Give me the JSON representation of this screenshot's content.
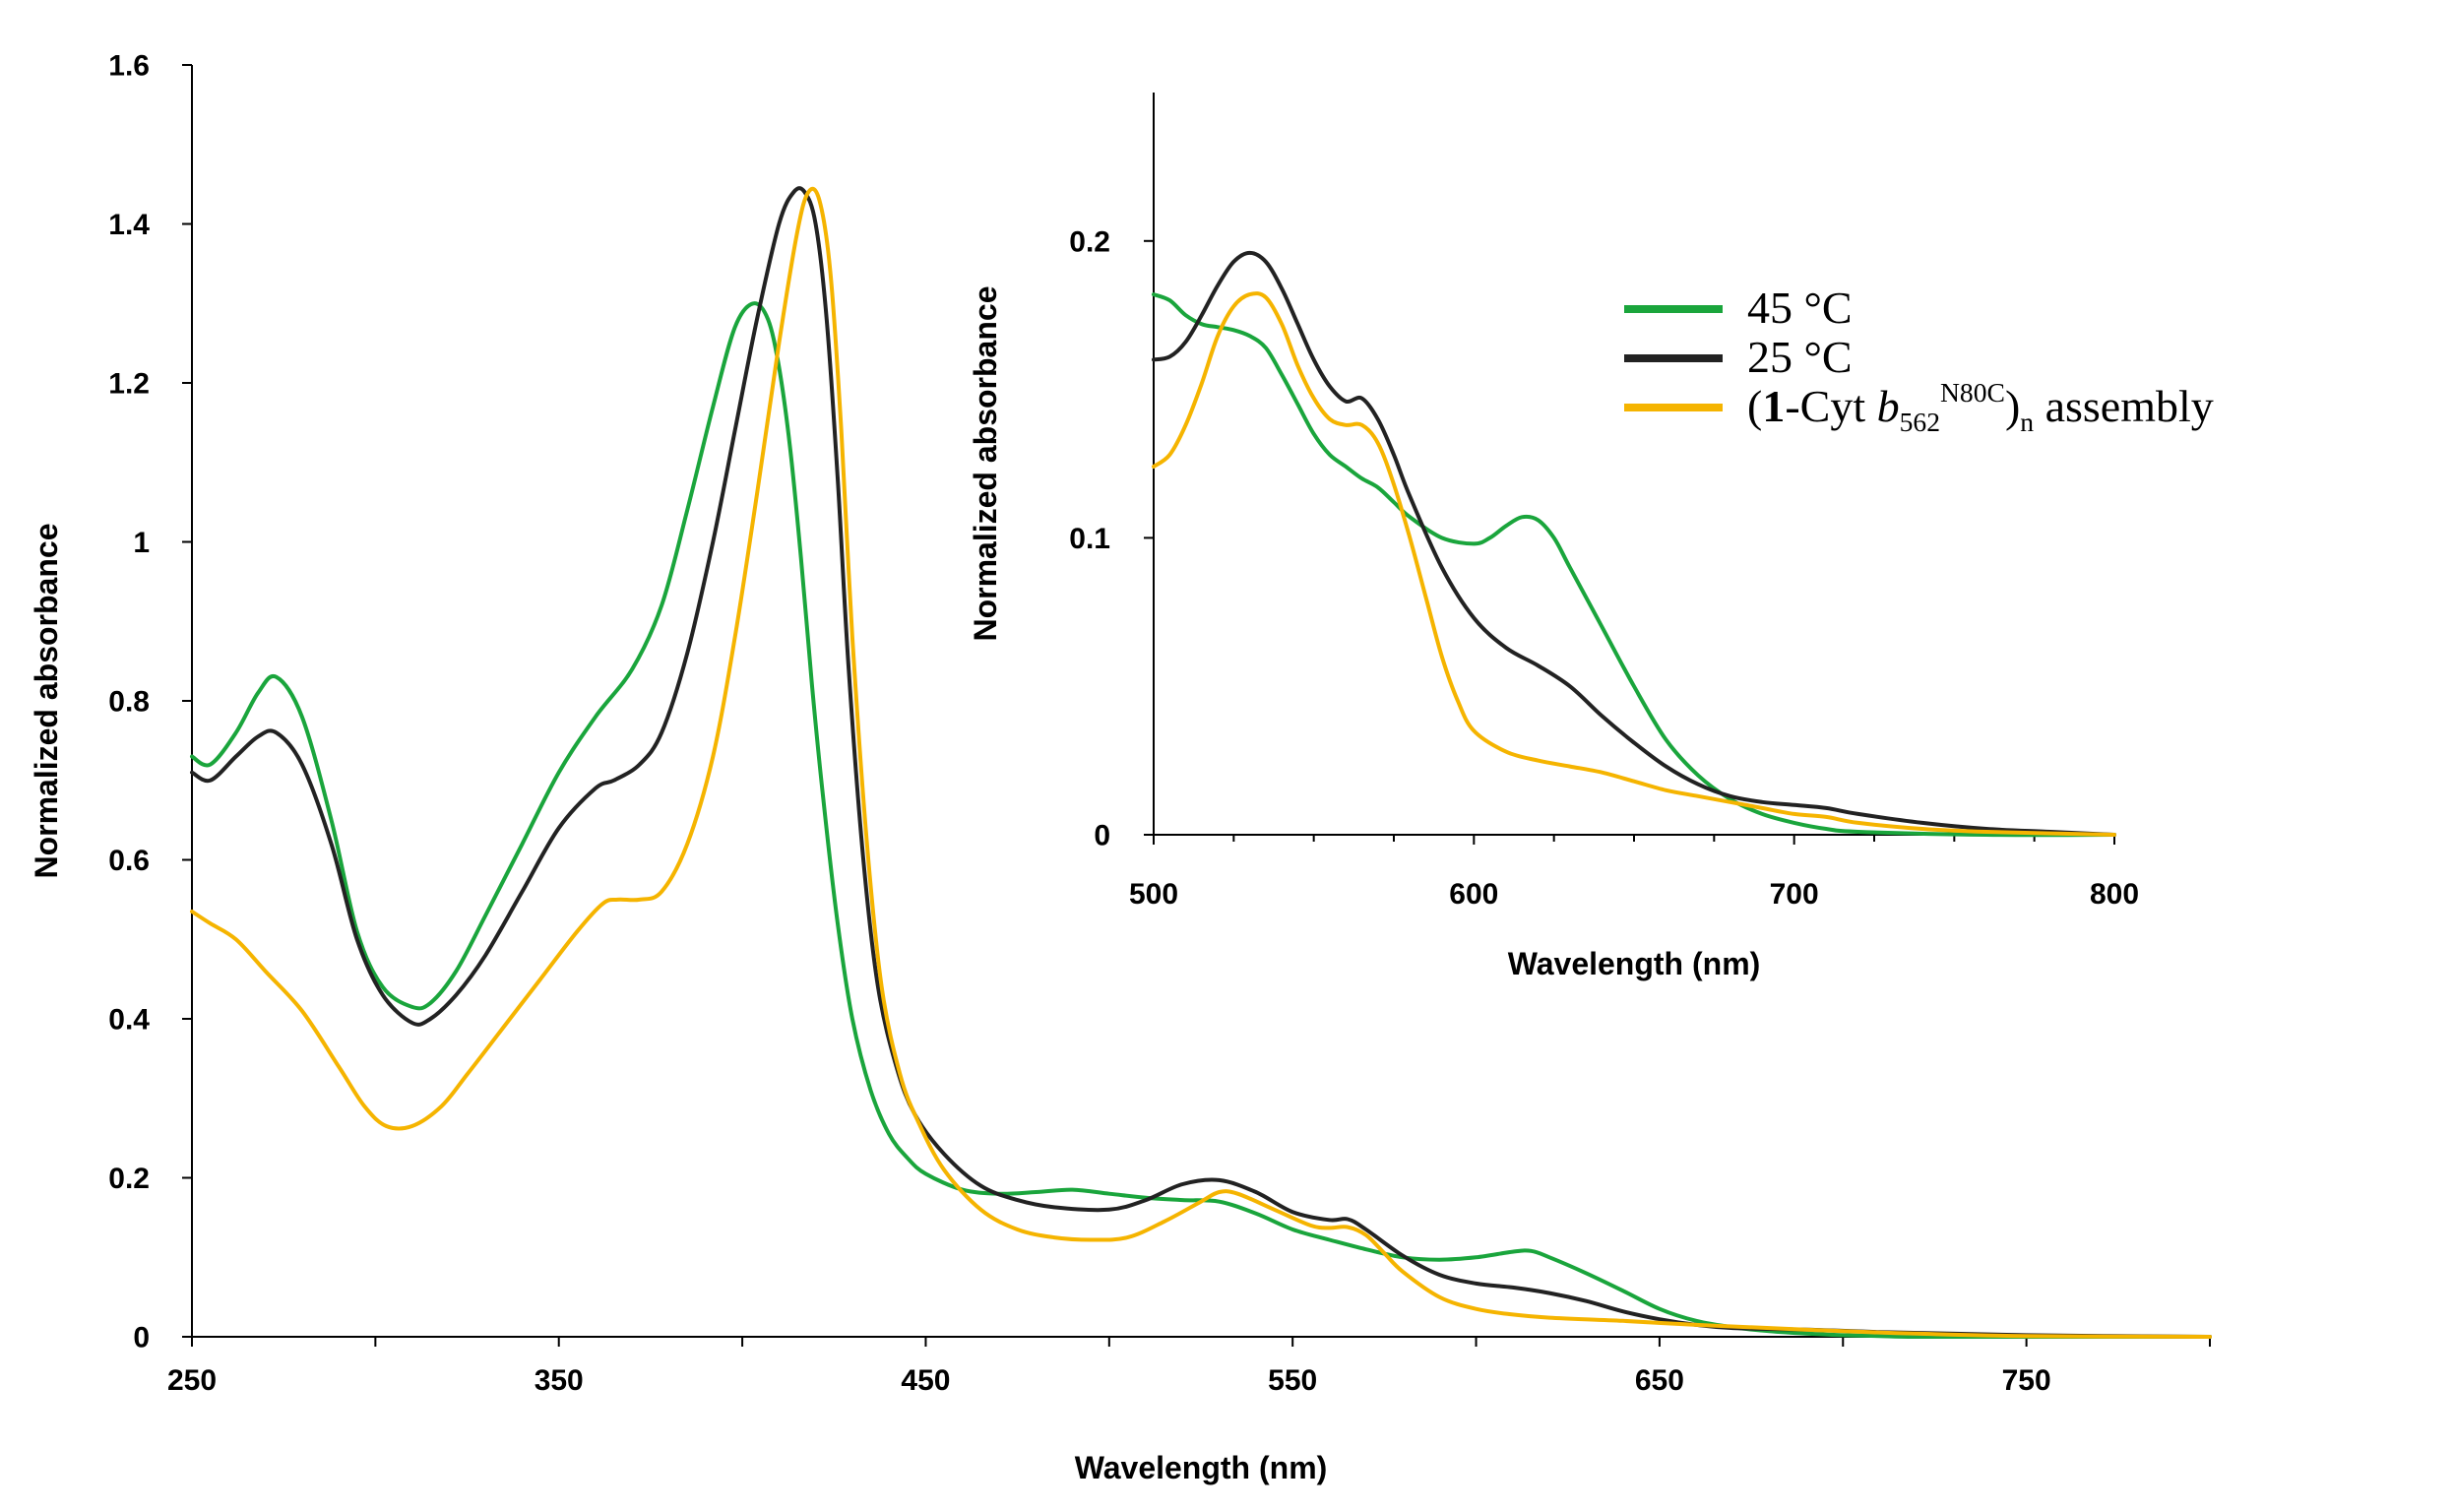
{
  "chart_data": [
    {
      "id": "main",
      "type": "line",
      "title": "",
      "xlabel": "Wavelength (nm)",
      "ylabel": "Normalized absorbance",
      "xlim": [
        250,
        800
      ],
      "ylim": [
        0,
        1.6
      ],
      "xticks": [
        250,
        350,
        450,
        550,
        650,
        750
      ],
      "yticks": [
        0,
        0.2,
        0.4,
        0.6,
        0.8,
        1,
        1.2,
        1.4,
        1.6
      ],
      "ytick_labels": [
        "0",
        "0.2",
        "0.4",
        "0.6",
        "0.8",
        "1",
        "1.2",
        "1.4",
        "1.6"
      ],
      "grid": false,
      "series": [
        {
          "name": "45 °C",
          "color": "#1aa53c",
          "x": [
            250,
            255,
            262,
            268,
            273,
            280,
            288,
            295,
            302,
            310,
            315,
            322,
            330,
            340,
            350,
            360,
            370,
            378,
            385,
            392,
            398,
            403,
            407,
            410,
            413,
            416,
            419,
            422,
            426,
            430,
            435,
            440,
            445,
            450,
            460,
            470,
            480,
            490,
            500,
            510,
            520,
            530,
            540,
            550,
            560,
            570,
            580,
            590,
            600,
            610,
            615,
            620,
            630,
            640,
            650,
            660,
            670,
            680,
            690,
            700,
            710,
            720,
            750,
            800
          ],
          "y": [
            0.73,
            0.72,
            0.76,
            0.81,
            0.83,
            0.78,
            0.65,
            0.51,
            0.44,
            0.415,
            0.42,
            0.46,
            0.53,
            0.62,
            0.71,
            0.78,
            0.84,
            0.92,
            1.04,
            1.17,
            1.27,
            1.3,
            1.28,
            1.22,
            1.12,
            0.98,
            0.82,
            0.68,
            0.52,
            0.4,
            0.31,
            0.255,
            0.225,
            0.205,
            0.185,
            0.18,
            0.182,
            0.185,
            0.18,
            0.175,
            0.172,
            0.17,
            0.155,
            0.135,
            0.122,
            0.11,
            0.1,
            0.097,
            0.1,
            0.107,
            0.108,
            0.1,
            0.08,
            0.058,
            0.035,
            0.02,
            0.012,
            0.007,
            0.004,
            0.002,
            0.001,
            0,
            0,
            0
          ]
        },
        {
          "name": "25 °C",
          "color": "#222222",
          "x": [
            250,
            255,
            262,
            268,
            273,
            280,
            288,
            295,
            302,
            310,
            315,
            322,
            330,
            340,
            350,
            360,
            365,
            372,
            378,
            385,
            392,
            398,
            404,
            410,
            414,
            417,
            420,
            423,
            426,
            429,
            433,
            437,
            442,
            447,
            455,
            465,
            475,
            485,
            500,
            510,
            520,
            530,
            540,
            550,
            560,
            565,
            570,
            580,
            590,
            600,
            610,
            620,
            630,
            640,
            650,
            660,
            670,
            690,
            710,
            750,
            800
          ],
          "y": [
            0.71,
            0.7,
            0.73,
            0.755,
            0.76,
            0.72,
            0.62,
            0.5,
            0.43,
            0.395,
            0.4,
            0.43,
            0.48,
            0.56,
            0.64,
            0.69,
            0.7,
            0.72,
            0.76,
            0.86,
            1.0,
            1.14,
            1.28,
            1.4,
            1.44,
            1.44,
            1.4,
            1.28,
            1.08,
            0.84,
            0.6,
            0.44,
            0.34,
            0.28,
            0.23,
            0.19,
            0.172,
            0.163,
            0.16,
            0.172,
            0.192,
            0.197,
            0.182,
            0.157,
            0.147,
            0.148,
            0.135,
            0.102,
            0.078,
            0.067,
            0.062,
            0.055,
            0.045,
            0.032,
            0.022,
            0.015,
            0.011,
            0.009,
            0.006,
            0.002,
            0
          ]
        },
        {
          "name": "(1-Cyt b562N80C)n assembly",
          "color": "#f5b400",
          "x": [
            250,
            255,
            262,
            270,
            280,
            290,
            297,
            303,
            310,
            318,
            325,
            335,
            345,
            355,
            362,
            366,
            372,
            378,
            385,
            392,
            398,
            404,
            410,
            415,
            418,
            421,
            424,
            427,
            430,
            434,
            438,
            443,
            448,
            455,
            465,
            475,
            485,
            495,
            505,
            515,
            525,
            530,
            535,
            545,
            555,
            560,
            565,
            570,
            575,
            580,
            590,
            600,
            610,
            620,
            640,
            660,
            680,
            700,
            720,
            750,
            800
          ],
          "y": [
            0.535,
            0.52,
            0.5,
            0.46,
            0.41,
            0.34,
            0.29,
            0.265,
            0.265,
            0.29,
            0.33,
            0.39,
            0.45,
            0.51,
            0.545,
            0.55,
            0.55,
            0.56,
            0.62,
            0.73,
            0.88,
            1.06,
            1.25,
            1.39,
            1.44,
            1.43,
            1.34,
            1.14,
            0.88,
            0.62,
            0.44,
            0.33,
            0.27,
            0.21,
            0.16,
            0.135,
            0.125,
            0.122,
            0.125,
            0.145,
            0.17,
            0.182,
            0.18,
            0.16,
            0.14,
            0.137,
            0.138,
            0.128,
            0.105,
            0.082,
            0.05,
            0.035,
            0.028,
            0.024,
            0.02,
            0.015,
            0.011,
            0.007,
            0.004,
            0.001,
            0
          ]
        }
      ]
    },
    {
      "id": "inset",
      "type": "line",
      "title": "",
      "xlabel": "Wavelength (nm)",
      "ylabel": "Normalized absorbance",
      "xlim": [
        500,
        800
      ],
      "ylim": [
        0,
        0.25
      ],
      "xticks": [
        500,
        600,
        700,
        800
      ],
      "yticks": [
        0,
        0.1,
        0.2
      ],
      "ytick_labels": [
        "0",
        "0.1",
        "0.2"
      ],
      "grid": false,
      "series": [
        {
          "name": "45 °C",
          "color": "#1aa53c",
          "x": [
            500,
            505,
            510,
            515,
            520,
            525,
            530,
            535,
            540,
            545,
            550,
            555,
            560,
            565,
            570,
            575,
            580,
            590,
            600,
            605,
            610,
            615,
            620,
            625,
            630,
            640,
            650,
            660,
            670,
            680,
            690,
            700,
            710,
            720,
            760,
            800
          ],
          "y": [
            0.182,
            0.18,
            0.175,
            0.172,
            0.171,
            0.17,
            0.168,
            0.164,
            0.155,
            0.145,
            0.135,
            0.128,
            0.124,
            0.12,
            0.117,
            0.112,
            0.107,
            0.1,
            0.098,
            0.1,
            0.104,
            0.107,
            0.106,
            0.1,
            0.09,
            0.07,
            0.05,
            0.032,
            0.02,
            0.012,
            0.007,
            0.004,
            0.002,
            0.001,
            0,
            0
          ]
        },
        {
          "name": "25 °C",
          "color": "#222222",
          "x": [
            500,
            505,
            510,
            515,
            520,
            525,
            530,
            535,
            540,
            545,
            550,
            555,
            560,
            565,
            570,
            575,
            580,
            590,
            600,
            610,
            620,
            630,
            640,
            650,
            660,
            670,
            680,
            690,
            700,
            710,
            720,
            740,
            760,
            780,
            800
          ],
          "y": [
            0.16,
            0.161,
            0.166,
            0.175,
            0.185,
            0.193,
            0.196,
            0.193,
            0.184,
            0.172,
            0.16,
            0.151,
            0.146,
            0.147,
            0.14,
            0.128,
            0.114,
            0.09,
            0.073,
            0.063,
            0.057,
            0.05,
            0.04,
            0.031,
            0.023,
            0.017,
            0.013,
            0.011,
            0.01,
            0.009,
            0.007,
            0.004,
            0.002,
            0.001,
            0
          ]
        },
        {
          "name": "(1-Cyt b562N80C)n assembly",
          "color": "#f5b400",
          "x": [
            500,
            505,
            510,
            515,
            520,
            525,
            530,
            535,
            540,
            545,
            550,
            555,
            560,
            565,
            570,
            575,
            580,
            585,
            590,
            595,
            600,
            610,
            620,
            630,
            640,
            650,
            660,
            670,
            680,
            690,
            700,
            710,
            720,
            740,
            760,
            800
          ],
          "y": [
            0.124,
            0.128,
            0.138,
            0.152,
            0.168,
            0.178,
            0.182,
            0.181,
            0.172,
            0.158,
            0.147,
            0.14,
            0.138,
            0.138,
            0.132,
            0.118,
            0.1,
            0.08,
            0.06,
            0.045,
            0.035,
            0.028,
            0.025,
            0.023,
            0.021,
            0.018,
            0.015,
            0.013,
            0.011,
            0.009,
            0.007,
            0.006,
            0.004,
            0.002,
            0.001,
            0
          ]
        }
      ]
    }
  ],
  "legend": {
    "position": "right, beside inset",
    "items": [
      {
        "label": "45 °C",
        "color": "#1aa53c"
      },
      {
        "label": "25 °C",
        "color": "#222222"
      },
      {
        "label_parts": {
          "open": "(",
          "bold": "1",
          "mid": "-Cyt ",
          "italic": "b",
          "sub": "562",
          "sup": "N80C",
          "close": ")",
          "sub2": "n",
          "tail": " assembly"
        },
        "color": "#f5b400"
      }
    ]
  }
}
